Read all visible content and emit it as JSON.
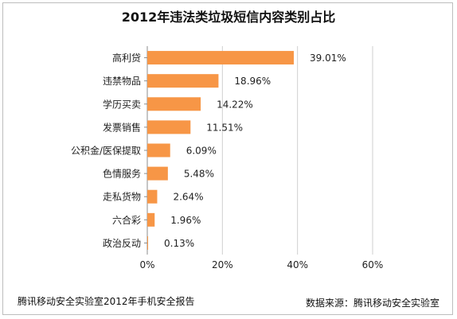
{
  "chart_data": {
    "type": "bar",
    "orientation": "horizontal",
    "title": "2012年违法类垃圾短信内容类别占比",
    "categories": [
      "高利贷",
      "违禁物品",
      "学历买卖",
      "发票销售",
      "公积金/医保提取",
      "色情服务",
      "走私货物",
      "六合彩",
      "政治反动"
    ],
    "values": [
      39.01,
      18.96,
      14.22,
      11.51,
      6.09,
      5.48,
      2.64,
      1.96,
      0.13
    ],
    "value_labels": [
      "39.01%",
      "18.96%",
      "14.22%",
      "11.51%",
      "6.09%",
      "5.48%",
      "2.64%",
      "1.96%",
      "0.13%"
    ],
    "xlim": [
      0,
      60
    ],
    "xticks": [
      0,
      20,
      40,
      60
    ],
    "xtick_labels": [
      "0%",
      "20%",
      "40%",
      "60%"
    ],
    "grid": true,
    "bar_color": "#f79646"
  },
  "footer": {
    "left": "腾讯移动安全实验室2012年手机安全报告",
    "right": "数据来源：腾讯移动安全实验室"
  }
}
